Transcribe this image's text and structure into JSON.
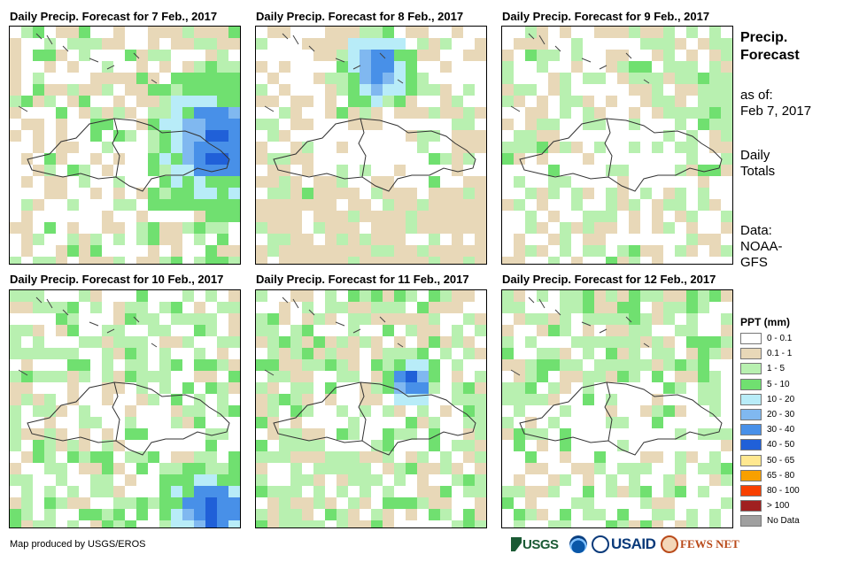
{
  "panels": [
    {
      "title": "Daily Precip. Forecast for 7 Feb., 2017"
    },
    {
      "title": "Daily Precip. Forecast for 8 Feb., 2017"
    },
    {
      "title": "Daily Precip. Forecast for 9 Feb., 2017"
    },
    {
      "title": "Daily Precip. Forecast for 10 Feb., 2017"
    },
    {
      "title": "Daily Precip. Forecast for 11 Feb., 2017"
    },
    {
      "title": "Daily Precip. Forecast for 12 Feb., 2017"
    }
  ],
  "sidebar": {
    "title_line1": "Precip.",
    "title_line2": "Forecast",
    "asof_line1": "as of:",
    "asof_line2": "Feb 7, 2017",
    "totals_line1": "Daily",
    "totals_line2": "Totals",
    "data_line1": "Data:",
    "data_line2": "NOAA-",
    "data_line3": "GFS"
  },
  "legend": {
    "title": "PPT (mm)",
    "items": [
      {
        "label": "0 - 0.1",
        "color": "#ffffff"
      },
      {
        "label": "0.1 - 1",
        "color": "#e8d8b8"
      },
      {
        "label": "1 - 5",
        "color": "#b8f0b0"
      },
      {
        "label": "5 - 10",
        "color": "#70e070"
      },
      {
        "label": "10 - 20",
        "color": "#b8ecf8"
      },
      {
        "label": "20 - 30",
        "color": "#80b8f0"
      },
      {
        "label": "30 - 40",
        "color": "#4890e8"
      },
      {
        "label": "40 - 50",
        "color": "#2060d8"
      },
      {
        "label": "50 - 65",
        "color": "#ffe890"
      },
      {
        "label": "65 - 80",
        "color": "#f8a000"
      },
      {
        "label": "80 - 100",
        "color": "#f84000"
      },
      {
        "label": "> 100",
        "color": "#a02020"
      },
      {
        "label": "No Data",
        "color": "#a0a0a0"
      }
    ]
  },
  "footer": {
    "credit": "Map produced by USGS/EROS",
    "logo_usgs": "USGS",
    "logo_usaid": "USAID",
    "logo_fewsnet": "FEWS NET"
  }
}
